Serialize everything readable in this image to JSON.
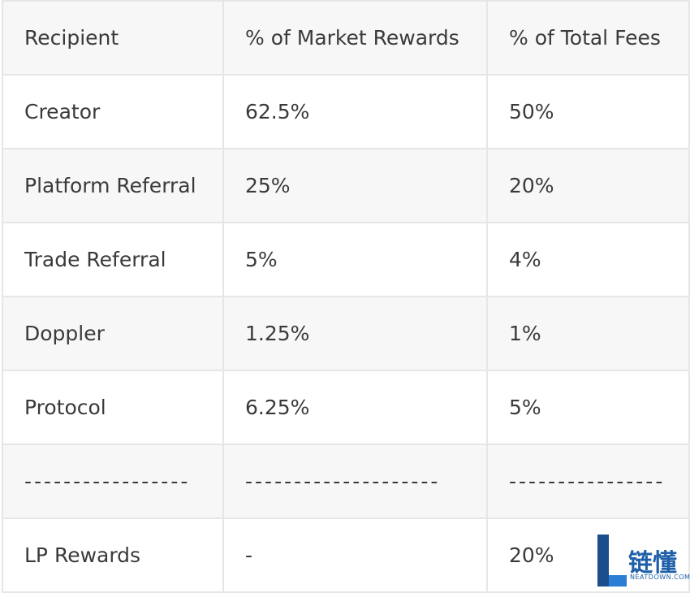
{
  "table": {
    "header": [
      "Recipient",
      "% of Market Rewards",
      "% of Total Fees"
    ],
    "rows": [
      [
        "Creator",
        "62.5%",
        "50%"
      ],
      [
        "Platform Referral",
        "25%",
        "20%"
      ],
      [
        "Trade Referral",
        "5%",
        "4%"
      ],
      [
        "Doppler",
        "1.25%",
        "1%"
      ],
      [
        "Protocol",
        "6.25%",
        "5%"
      ],
      [
        "-----------------",
        "--------------------",
        "----------------"
      ],
      [
        "LP Rewards",
        "-",
        "20%"
      ]
    ]
  },
  "watermark": {
    "text": "链懂",
    "subtext": "NEATDOWN.COM"
  }
}
